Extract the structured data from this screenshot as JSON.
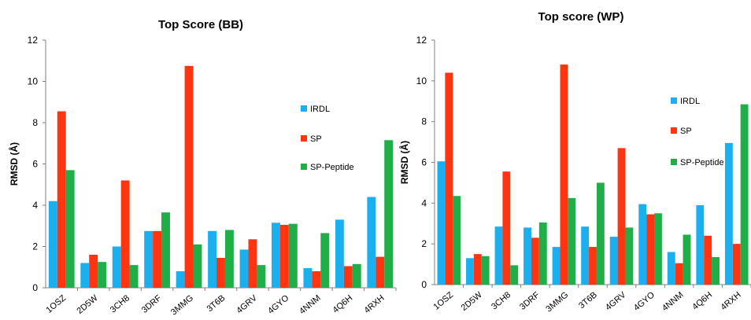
{
  "colors": {
    "IRDL": "#1ab0f0",
    "SP": "#ff3511",
    "SP-Peptide": "#1fae48"
  },
  "chart_data": [
    {
      "type": "bar",
      "title": "Top Score (BB)",
      "xlabel": "",
      "ylabel": "RMSD (Å)",
      "ylim": [
        0,
        12
      ],
      "yticks": [
        0,
        2,
        4,
        6,
        8,
        10,
        12
      ],
      "grid": false,
      "legend": "right",
      "categories": [
        "1OSZ",
        "2D5W",
        "3CH8",
        "3DRF",
        "3MMG",
        "3T6B",
        "4GRV",
        "4GYO",
        "4NNM",
        "4Q6H",
        "4RXH"
      ],
      "series": [
        {
          "name": "IRDL",
          "values": [
            4.2,
            1.2,
            2.0,
            2.75,
            0.8,
            2.75,
            1.85,
            3.15,
            0.95,
            3.3,
            4.4
          ]
        },
        {
          "name": "SP",
          "values": [
            8.55,
            1.6,
            5.2,
            2.75,
            10.75,
            1.45,
            2.35,
            3.05,
            0.8,
            1.05,
            1.5
          ]
        },
        {
          "name": "SP-Peptide",
          "values": [
            5.7,
            1.25,
            1.1,
            3.65,
            2.1,
            2.8,
            1.1,
            3.1,
            2.65,
            1.15,
            7.15
          ]
        }
      ]
    },
    {
      "type": "bar",
      "title": "Top score (WP)",
      "xlabel": "",
      "ylabel": "RMSD (Å)",
      "ylim": [
        0,
        12
      ],
      "yticks": [
        0,
        2,
        4,
        6,
        8,
        10,
        12
      ],
      "grid": false,
      "legend": "right",
      "categories": [
        "1OSZ",
        "2D5W",
        "3CH8",
        "3DRF",
        "3MMG",
        "3T6B",
        "4GRV",
        "4GYO",
        "4NNM",
        "4Q6H",
        "4RXH"
      ],
      "series": [
        {
          "name": "IRDL",
          "values": [
            6.05,
            1.3,
            2.85,
            2.8,
            1.85,
            2.85,
            2.35,
            3.95,
            1.6,
            3.9,
            6.95
          ]
        },
        {
          "name": "SP",
          "values": [
            10.4,
            1.5,
            5.55,
            2.3,
            10.8,
            1.85,
            6.7,
            3.45,
            1.05,
            2.4,
            2.0
          ]
        },
        {
          "name": "SP-Peptide",
          "values": [
            4.35,
            1.4,
            0.95,
            3.05,
            4.25,
            5.0,
            2.8,
            3.5,
            2.45,
            1.35,
            8.85
          ]
        }
      ]
    }
  ]
}
